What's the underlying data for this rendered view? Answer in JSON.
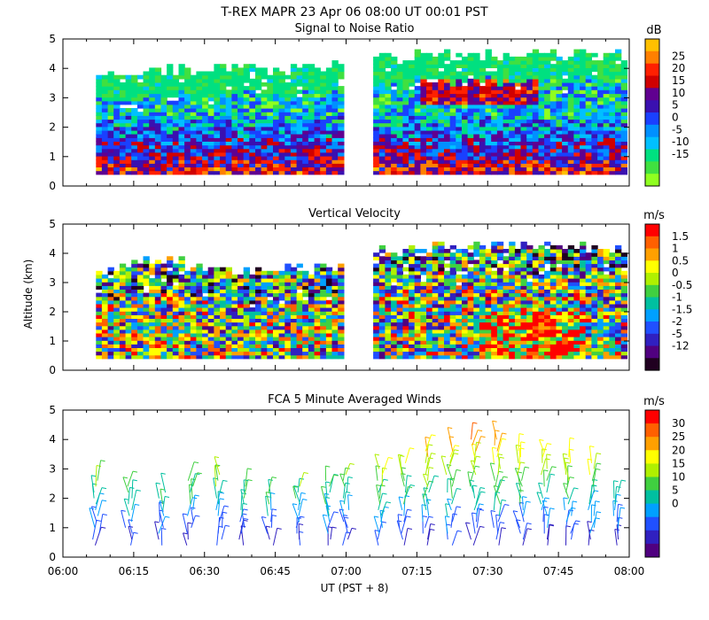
{
  "title_line": "T-REX   MAPR 23 Apr 06   08:00 UT   00:01   PST",
  "x_axis": {
    "label": "UT  (PST + 8)",
    "tick_labels": [
      "06:00",
      "06:15",
      "06:30",
      "06:45",
      "07:00",
      "07:15",
      "07:30",
      "07:45",
      "08:00"
    ],
    "range_minutes": [
      0,
      120
    ]
  },
  "y_axis": {
    "label": "Altitude (km)",
    "tick_labels": [
      "0",
      "1",
      "2",
      "3",
      "4",
      "5"
    ],
    "range": [
      0,
      5
    ]
  },
  "panels": [
    {
      "title": "Signal to Noise Ratio",
      "unit": "dB",
      "colorbar_labels": [
        "25",
        "20",
        "15",
        "10",
        "5",
        "0",
        "-5",
        "-10",
        "-15"
      ],
      "colorbar_colors": [
        "#ffc000",
        "#ff8000",
        "#ff2000",
        "#d00000",
        "#600090",
        "#3a10b0",
        "#1a40ff",
        "#0090ff",
        "#00c0ff",
        "#00e080",
        "#40e040",
        "#90ff20"
      ],
      "data_gap_minutes": [
        59,
        65
      ]
    },
    {
      "title": "Vertical Velocity",
      "unit": "m/s",
      "colorbar_labels": [
        "1.5",
        "1",
        "0.5",
        "0",
        "-0.5",
        "-1",
        "-1.5",
        "-2",
        "-5",
        "-12"
      ],
      "colorbar_colors": [
        "#ff0000",
        "#ff6000",
        "#ffa000",
        "#ffff00",
        "#b0f000",
        "#40d040",
        "#00c0a0",
        "#00a0ff",
        "#2050ff",
        "#3020c0",
        "#500080",
        "#200020"
      ],
      "data_gap_minutes": [
        59,
        65
      ]
    },
    {
      "title": "FCA 5 Minute Averaged Winds",
      "unit": "m/s",
      "colorbar_labels": [
        "30",
        "25",
        "20",
        "15",
        "10",
        "5",
        "0"
      ],
      "colorbar_colors": [
        "#ff0000",
        "#ff6000",
        "#ffa000",
        "#ffff00",
        "#b0f000",
        "#40d040",
        "#00c0a0",
        "#00a0ff",
        "#2050ff",
        "#3020c0",
        "#500080"
      ]
    }
  ],
  "chart_data": [
    {
      "type": "heatmap",
      "title": "Signal to Noise Ratio",
      "xlabel": "UT  (PST + 8)",
      "ylabel": "Altitude (km)",
      "unit": "dB",
      "xlim_minutes": [
        0,
        120
      ],
      "ylim": [
        0,
        5
      ],
      "value_range": [
        -15,
        25
      ],
      "description_values": "Strong echoes (5-25 dB) below 2.5 km; weaker (-15 to -5 dB) up to about 4.5 km; enhanced layer near 3-3.5 km after 07:20 UT",
      "echo_top_km": [
        [
          7,
          3.8
        ],
        [
          20,
          3.9
        ],
        [
          40,
          3.9
        ],
        [
          58,
          4.0
        ],
        [
          66,
          4.3
        ],
        [
          90,
          4.4
        ],
        [
          110,
          4.5
        ],
        [
          118,
          4.4
        ]
      ]
    },
    {
      "type": "heatmap",
      "title": "Vertical Velocity",
      "xlabel": "UT  (PST + 8)",
      "ylabel": "Altitude (km)",
      "unit": "m/s",
      "xlim_minutes": [
        0,
        120
      ],
      "ylim": [
        0,
        5
      ],
      "value_range": [
        -12,
        1.5
      ],
      "echo_top_km": [
        [
          7,
          3.4
        ],
        [
          20,
          3.7
        ],
        [
          40,
          3.3
        ],
        [
          58,
          3.5
        ],
        [
          66,
          4.1
        ],
        [
          90,
          4.3
        ],
        [
          110,
          4.2
        ],
        [
          118,
          4.1
        ]
      ]
    },
    {
      "type": "scatter",
      "subtype": "wind_barbs",
      "title": "FCA 5 Minute Averaged Winds",
      "xlabel": "UT  (PST + 8)",
      "ylabel": "Altitude (km)",
      "unit": "m/s",
      "xlim_minutes": [
        0,
        120
      ],
      "ylim": [
        0,
        5
      ],
      "speed_range": [
        0,
        30
      ],
      "profile_times_minutes": [
        7,
        14,
        21,
        27,
        33,
        38,
        44,
        50,
        56,
        60,
        67,
        72,
        77,
        82,
        87,
        92,
        97,
        102,
        107,
        112,
        117
      ],
      "profile_tops_km": [
        2.8,
        2.5,
        2.2,
        2.7,
        2.9,
        2.4,
        2.3,
        2.4,
        2.6,
        2.9,
        3.1,
        3.4,
        3.8,
        4.0,
        4.2,
        4.2,
        3.8,
        3.7,
        3.6,
        3.4,
        2.3
      ]
    }
  ]
}
